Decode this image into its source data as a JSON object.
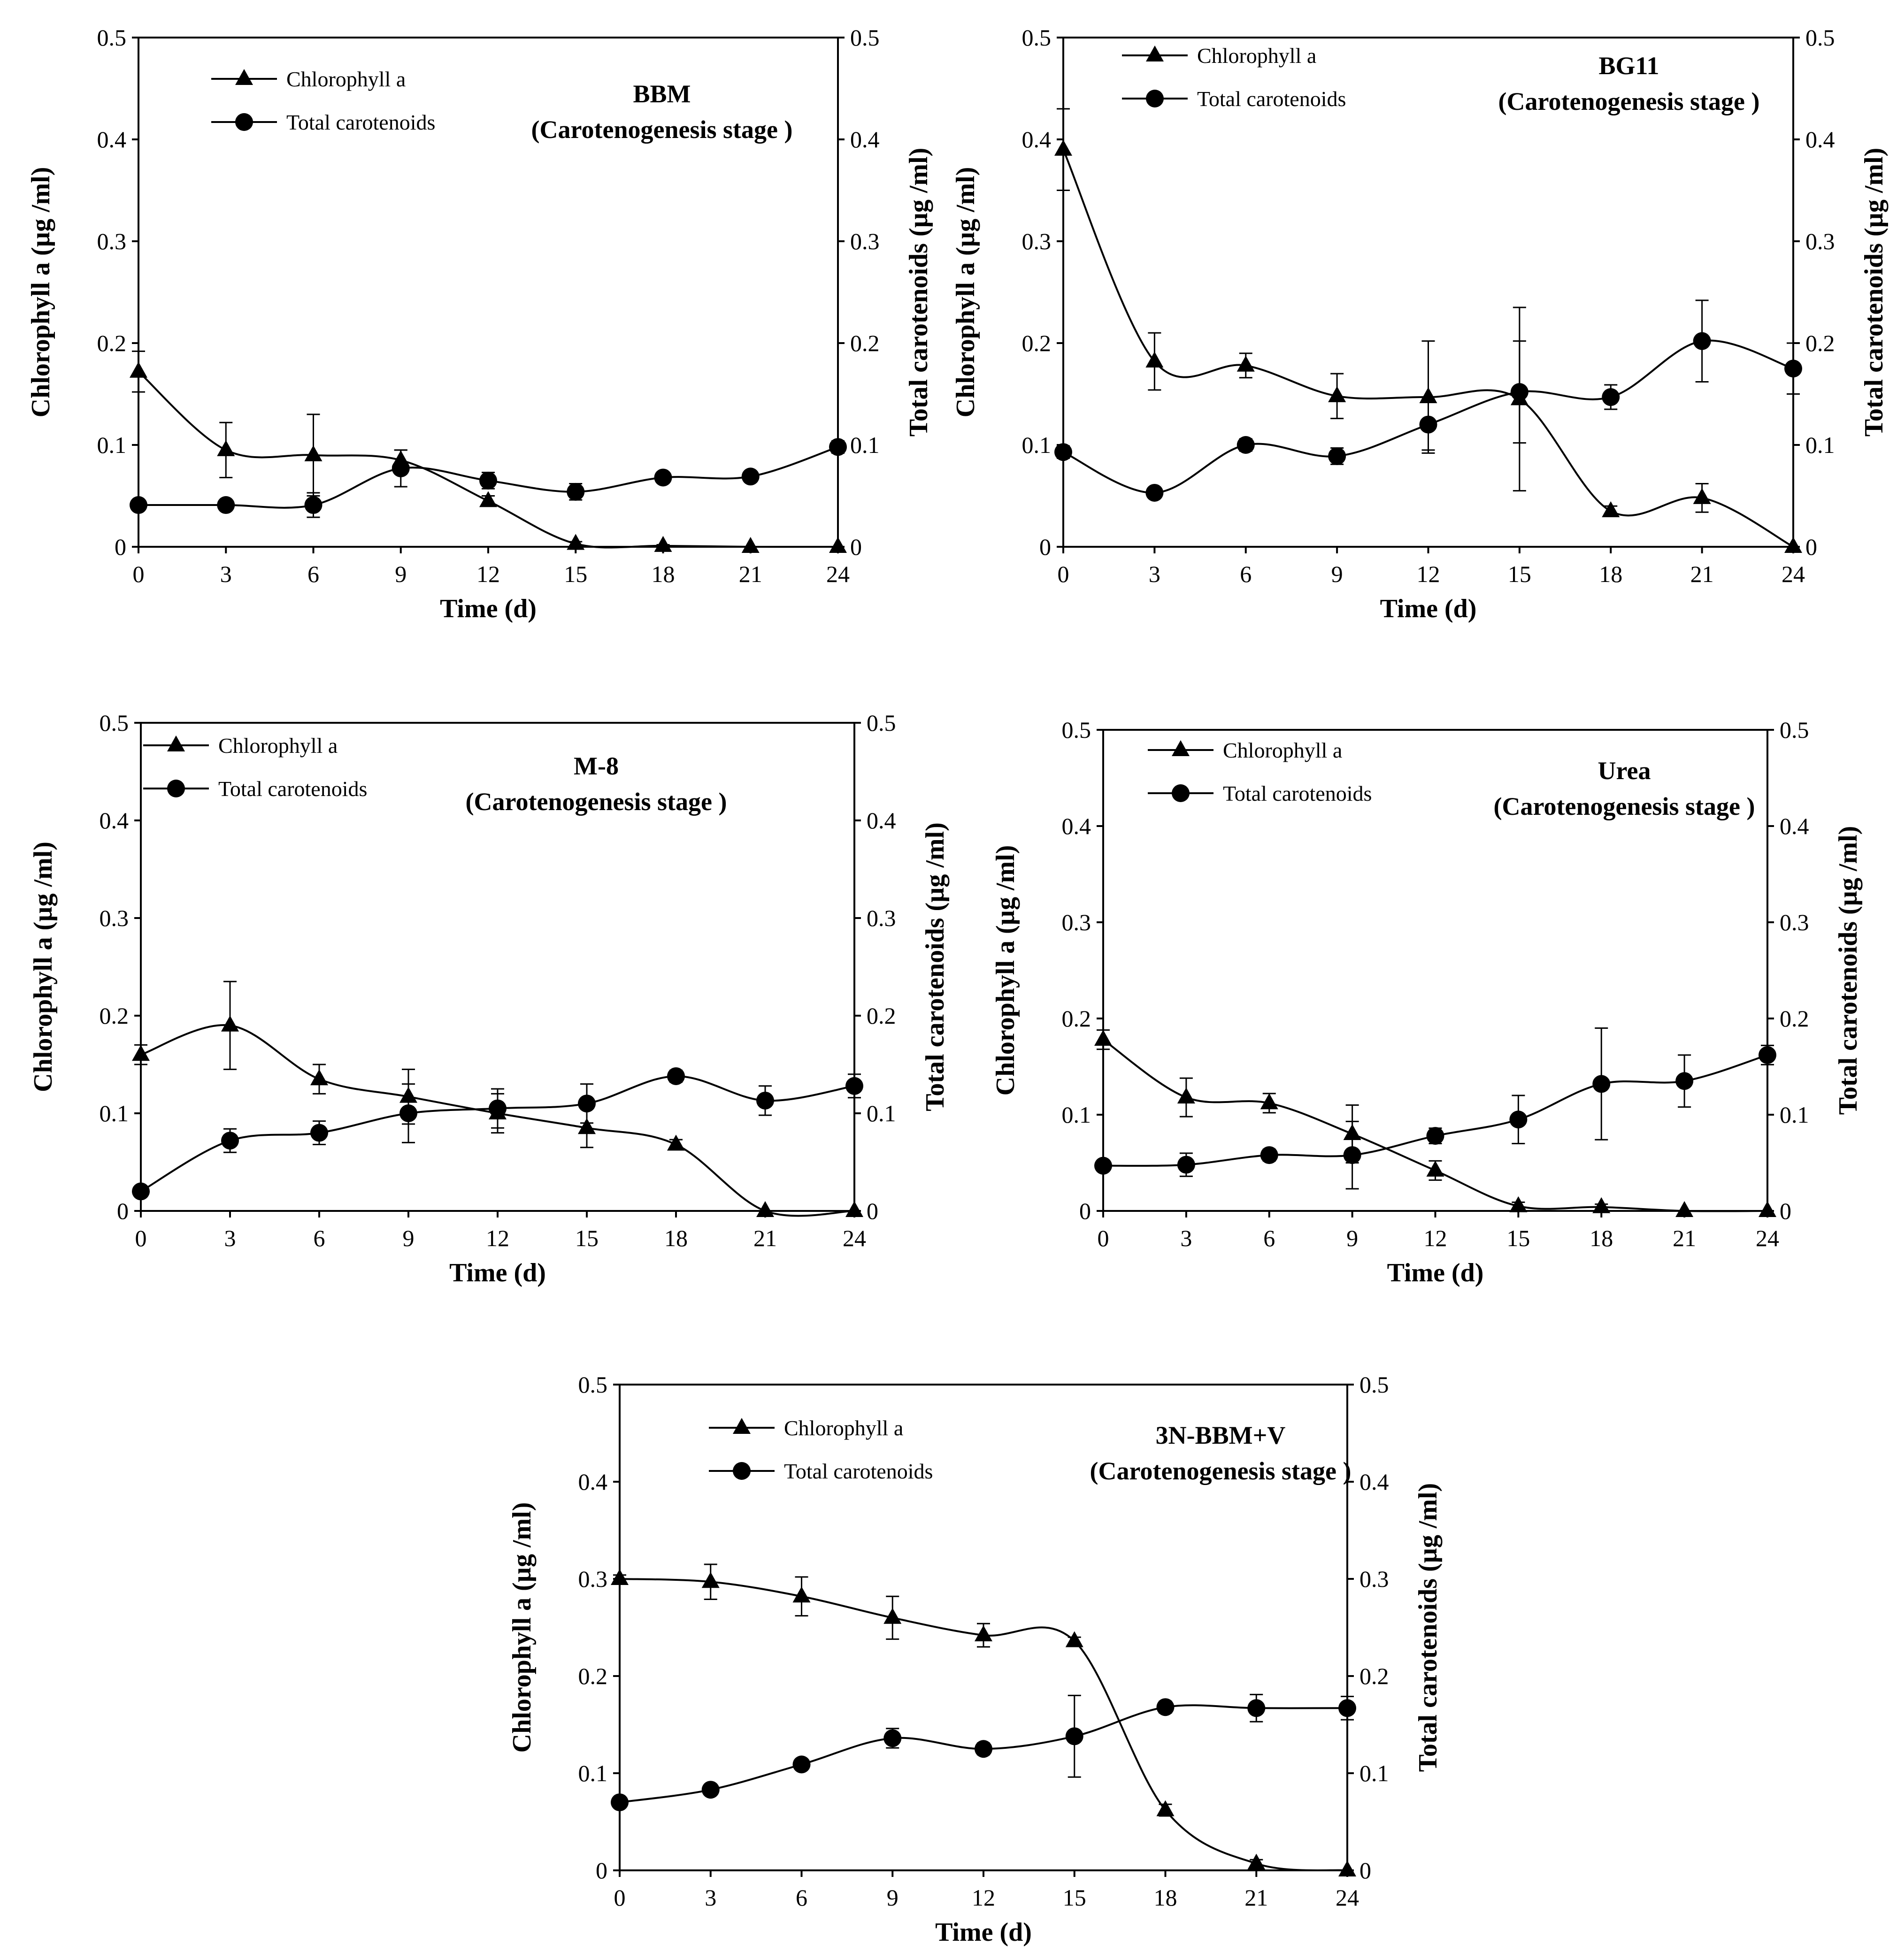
{
  "chart_data": [
    {
      "type": "line",
      "title": "BBM",
      "subtitle": "(Carotenogenesis stage )",
      "xlabel": "Time (d)",
      "ylabel": "Chlorophyll a  (µg /ml)",
      "y2label": "Total carotenoids  (µg /ml)",
      "x": [
        0,
        3,
        6,
        9,
        12,
        15,
        18,
        21,
        24
      ],
      "xlim": [
        0,
        24
      ],
      "ylim": [
        0,
        0.5
      ],
      "y2lim": [
        0,
        0.5
      ],
      "xticks": [
        "0",
        "3",
        "6",
        "9",
        "12",
        "15",
        "18",
        "21",
        "24"
      ],
      "yticks": [
        "0",
        "0.1",
        "0.2",
        "0.3",
        "0.4",
        "0.5"
      ],
      "legend_position": "top-left",
      "grid": false,
      "series": [
        {
          "name": "Chlorophyll a",
          "marker": "triangle",
          "values": [
            0.172,
            0.095,
            0.09,
            0.085,
            0.045,
            0.003,
            0.001,
            0.0,
            0.0
          ],
          "errors": [
            0.02,
            0.027,
            0.04,
            0.01,
            0.005,
            0.002,
            0.001,
            0.0,
            0.0
          ]
        },
        {
          "name": "Total carotenoids",
          "marker": "circle",
          "values": [
            0.041,
            0.041,
            0.041,
            0.077,
            0.065,
            0.054,
            0.068,
            0.069,
            0.098
          ],
          "errors": [
            0.005,
            0.004,
            0.012,
            0.018,
            0.008,
            0.008,
            0.005,
            0.004,
            0.006
          ]
        }
      ]
    },
    {
      "type": "line",
      "title": "BG11",
      "subtitle": "(Carotenogenesis stage )",
      "xlabel": "Time (d)",
      "ylabel": "Chlorophyll a  (µg /ml)",
      "y2label": "Total carotenoids  (µg /ml)",
      "x": [
        0,
        3,
        6,
        9,
        12,
        15,
        18,
        21,
        24
      ],
      "xlim": [
        0,
        24
      ],
      "ylim": [
        0,
        0.5
      ],
      "y2lim": [
        0,
        0.5
      ],
      "xticks": [
        "0",
        "3",
        "6",
        "9",
        "12",
        "15",
        "18",
        "21",
        "24"
      ],
      "yticks": [
        "0",
        "0.1",
        "0.2",
        "0.3",
        "0.4",
        "0.5"
      ],
      "legend_position": "top-left",
      "grid": false,
      "series": [
        {
          "name": "Chlorophyll a",
          "marker": "triangle",
          "values": [
            0.39,
            0.182,
            0.178,
            0.148,
            0.147,
            0.145,
            0.035,
            0.048,
            0.0
          ],
          "errors": [
            0.04,
            0.028,
            0.012,
            0.022,
            0.055,
            0.09,
            0.005,
            0.014,
            0.0
          ]
        },
        {
          "name": "Total carotenoids",
          "marker": "circle",
          "values": [
            0.093,
            0.053,
            0.1,
            0.089,
            0.12,
            0.152,
            0.147,
            0.202,
            0.175
          ],
          "errors": [
            0.006,
            0.005,
            0.006,
            0.008,
            0.025,
            0.05,
            0.012,
            0.04,
            0.025
          ]
        }
      ]
    },
    {
      "type": "line",
      "title": "M-8",
      "subtitle": "(Carotenogenesis stage )",
      "xlabel": "Time (d)",
      "ylabel": "Chlorophyll a  (µg /ml)",
      "y2label": "Total carotenoids  (µg /ml)",
      "x": [
        0,
        3,
        6,
        9,
        12,
        15,
        18,
        21,
        24
      ],
      "xlim": [
        0,
        24
      ],
      "ylim": [
        0,
        0.5
      ],
      "y2lim": [
        0,
        0.5
      ],
      "xticks": [
        "0",
        "3",
        "6",
        "9",
        "12",
        "15",
        "18",
        "21",
        "24"
      ],
      "yticks": [
        "0",
        "0.1",
        "0.2",
        "0.3",
        "0.4",
        "0.5"
      ],
      "legend_position": "top-left",
      "grid": false,
      "series": [
        {
          "name": "Chlorophyll a",
          "marker": "triangle",
          "values": [
            0.16,
            0.19,
            0.135,
            0.117,
            0.1,
            0.085,
            0.068,
            0.0,
            0.0
          ],
          "errors": [
            0.01,
            0.045,
            0.015,
            0.028,
            0.02,
            0.02,
            0.005,
            0.0,
            0.0
          ]
        },
        {
          "name": "Total carotenoids",
          "marker": "circle",
          "values": [
            0.02,
            0.072,
            0.08,
            0.1,
            0.105,
            0.11,
            0.138,
            0.113,
            0.128
          ],
          "errors": [
            0.004,
            0.012,
            0.012,
            0.03,
            0.02,
            0.02,
            0.006,
            0.015,
            0.012
          ]
        }
      ]
    },
    {
      "type": "line",
      "title": "Urea",
      "subtitle": "(Carotenogenesis stage )",
      "xlabel": "Time (d)",
      "ylabel": "Chlorophyll a  (µg /ml)",
      "y2label": "Total carotenoids  (µg /ml)",
      "x": [
        0,
        3,
        6,
        9,
        12,
        15,
        18,
        21,
        24
      ],
      "xlim": [
        0,
        24
      ],
      "ylim": [
        0,
        0.5
      ],
      "y2lim": [
        0,
        0.5
      ],
      "xticks": [
        "0",
        "3",
        "6",
        "9",
        "12",
        "15",
        "18",
        "21",
        "24"
      ],
      "yticks": [
        "0",
        "0.1",
        "0.2",
        "0.3",
        "0.4",
        "0.5"
      ],
      "legend_position": "top-left",
      "grid": false,
      "series": [
        {
          "name": "Chlorophyll a",
          "marker": "triangle",
          "values": [
            0.178,
            0.118,
            0.112,
            0.08,
            0.042,
            0.005,
            0.004,
            0.0,
            0.0
          ],
          "errors": [
            0.01,
            0.02,
            0.01,
            0.03,
            0.01,
            0.004,
            0.003,
            0.0,
            0.0
          ]
        },
        {
          "name": "Total carotenoids",
          "marker": "circle",
          "values": [
            0.047,
            0.048,
            0.058,
            0.058,
            0.078,
            0.095,
            0.132,
            0.135,
            0.162
          ],
          "errors": [
            0.005,
            0.012,
            0.006,
            0.035,
            0.008,
            0.025,
            0.058,
            0.027,
            0.01
          ]
        }
      ]
    },
    {
      "type": "line",
      "title": "3N-BBM+V",
      "subtitle": "(Carotenogenesis stage )",
      "xlabel": "Time (d)",
      "ylabel": "Chlorophyll a  (µg /ml)",
      "y2label": "Total carotenoids  (µg /ml)",
      "x": [
        0,
        3,
        6,
        9,
        12,
        15,
        18,
        21,
        24
      ],
      "xlim": [
        0,
        24
      ],
      "ylim": [
        0,
        0.5
      ],
      "y2lim": [
        0,
        0.5
      ],
      "xticks": [
        "0",
        "3",
        "6",
        "9",
        "12",
        "15",
        "18",
        "21",
        "24"
      ],
      "yticks": [
        "0",
        "0.1",
        "0.2",
        "0.3",
        "0.4",
        "0.5"
      ],
      "legend_position": "top-left",
      "grid": false,
      "series": [
        {
          "name": "Chlorophyll a",
          "marker": "triangle",
          "values": [
            0.3,
            0.297,
            0.282,
            0.26,
            0.242,
            0.236,
            0.062,
            0.007,
            0.0
          ],
          "errors": [
            0.004,
            0.018,
            0.02,
            0.022,
            0.012,
            0.004,
            0.006,
            0.004,
            0.0
          ]
        },
        {
          "name": "Total carotenoids",
          "marker": "circle",
          "values": [
            0.07,
            0.083,
            0.109,
            0.136,
            0.125,
            0.138,
            0.168,
            0.167,
            0.167
          ],
          "errors": [
            0.004,
            0.004,
            0.005,
            0.01,
            0.006,
            0.042,
            0.006,
            0.014,
            0.012
          ]
        }
      ]
    }
  ]
}
